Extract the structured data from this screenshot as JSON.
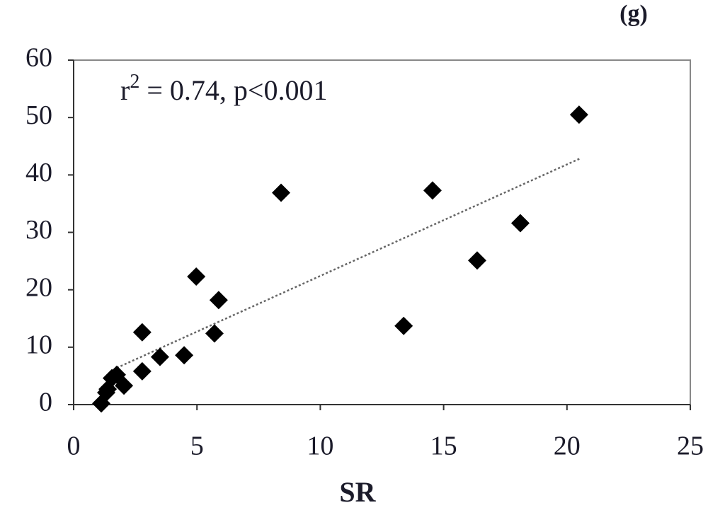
{
  "chart_data": {
    "type": "scatter",
    "panel_label": "(g)",
    "xlabel": "SR",
    "annotation": {
      "base": "r",
      "superscript": "2",
      "rest": " = 0.74, p<0.001"
    },
    "x": [
      1.12,
      1.32,
      1.38,
      1.55,
      1.75,
      2.04,
      2.78,
      2.78,
      3.5,
      4.48,
      4.97,
      5.71,
      5.88,
      8.41,
      13.38,
      14.55,
      16.36,
      18.11,
      20.49
    ],
    "values": [
      0.2,
      2.1,
      2.7,
      4.6,
      5.2,
      3.3,
      12.6,
      5.8,
      8.3,
      8.6,
      22.3,
      12.4,
      18.2,
      36.9,
      13.7,
      37.3,
      25.1,
      31.6,
      50.5
    ],
    "color": "#000000",
    "trendline": {
      "x": [
        1.75,
        20.55
      ],
      "y": [
        6.4,
        42.9
      ],
      "color": "#666666"
    },
    "xlim": [
      0,
      25
    ],
    "xticks": [
      0,
      5,
      10,
      15,
      20,
      25
    ],
    "ylim": [
      0,
      60
    ],
    "yticks": [
      0,
      10,
      20,
      30,
      40,
      50,
      60
    ]
  }
}
